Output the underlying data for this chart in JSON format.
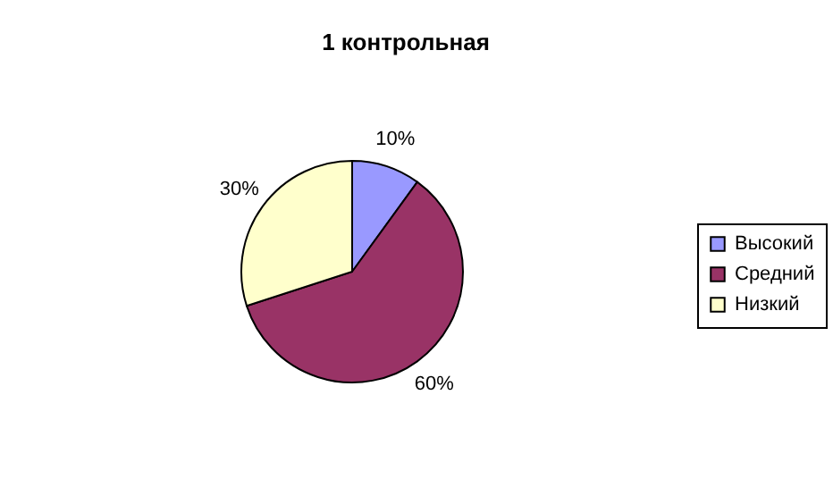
{
  "chart_data": {
    "type": "pie",
    "title": "1 контрольная",
    "categories": [
      "Высокий",
      "Средний",
      "Низкий"
    ],
    "values": [
      10,
      60,
      30
    ],
    "colors": [
      "#9999ff",
      "#993366",
      "#ffffcc"
    ],
    "value_labels": [
      "10%",
      "60%",
      "30%"
    ],
    "legend": "right"
  }
}
